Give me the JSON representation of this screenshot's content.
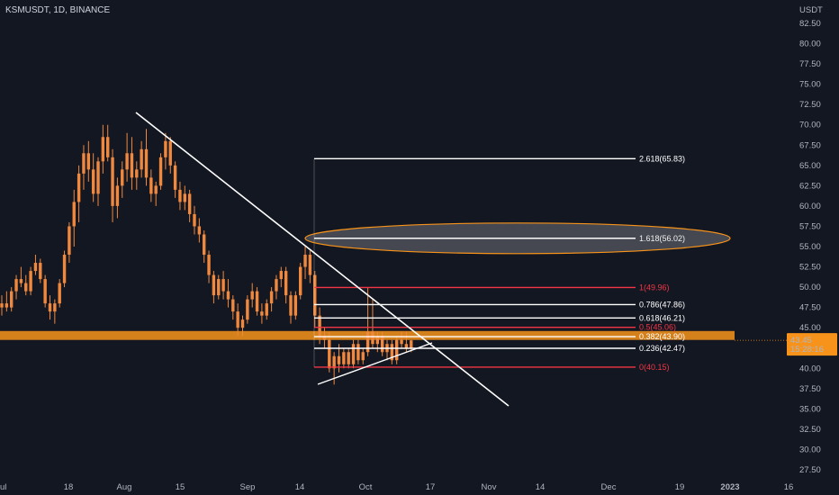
{
  "chart_title": "KSMUSDT, 1D, BINANCE",
  "price_unit": "USDT",
  "current_price_label": "43.45",
  "countdown_label": "15:28:16",
  "colors": {
    "background": "#131722",
    "candle": "#f0883e",
    "accent": "#f7931a",
    "fib_red": "#f23645",
    "fib_white": "#ffffff",
    "axis_text": "#b2b5be"
  },
  "chart_data": {
    "type": "candlestick",
    "title": "KSMUSDT, 1D, BINANCE",
    "ylim": [
      27.5,
      82.5
    ],
    "y_ticks": [
      "82.50",
      "80.00",
      "77.50",
      "75.00",
      "72.50",
      "70.00",
      "67.50",
      "65.00",
      "62.50",
      "60.00",
      "57.50",
      "55.00",
      "52.50",
      "50.00",
      "47.50",
      "45.00",
      "42.50",
      "40.00",
      "37.50",
      "35.00",
      "32.50",
      "30.00",
      "27.50"
    ],
    "x_ticks": [
      "ul",
      "18",
      "Aug",
      "15",
      "Sep",
      "14",
      "Oct",
      "17",
      "Nov",
      "14",
      "Dec",
      "19",
      "2023",
      "16"
    ],
    "candles": [
      {
        "o": 47.5,
        "h": 49.0,
        "l": 46.5,
        "c": 48.0
      },
      {
        "o": 48.0,
        "h": 49.5,
        "l": 47.0,
        "c": 47.5
      },
      {
        "o": 47.5,
        "h": 50.0,
        "l": 47.0,
        "c": 49.5
      },
      {
        "o": 49.5,
        "h": 51.5,
        "l": 48.5,
        "c": 51.0
      },
      {
        "o": 51.0,
        "h": 52.5,
        "l": 50.0,
        "c": 50.5
      },
      {
        "o": 50.5,
        "h": 51.5,
        "l": 49.0,
        "c": 49.5
      },
      {
        "o": 49.5,
        "h": 52.5,
        "l": 49.0,
        "c": 52.0
      },
      {
        "o": 52.0,
        "h": 54.0,
        "l": 51.5,
        "c": 53.0
      },
      {
        "o": 53.0,
        "h": 53.5,
        "l": 50.5,
        "c": 51.0
      },
      {
        "o": 51.0,
        "h": 51.5,
        "l": 47.5,
        "c": 48.0
      },
      {
        "o": 48.0,
        "h": 49.0,
        "l": 46.0,
        "c": 47.0
      },
      {
        "o": 47.0,
        "h": 48.5,
        "l": 45.5,
        "c": 48.0
      },
      {
        "o": 48.0,
        "h": 51.0,
        "l": 47.5,
        "c": 50.5
      },
      {
        "o": 50.5,
        "h": 54.5,
        "l": 50.0,
        "c": 54.0
      },
      {
        "o": 54.0,
        "h": 58.0,
        "l": 53.0,
        "c": 57.5
      },
      {
        "o": 57.5,
        "h": 62.0,
        "l": 55.0,
        "c": 60.5
      },
      {
        "o": 60.5,
        "h": 65.0,
        "l": 58.0,
        "c": 64.0
      },
      {
        "o": 64.0,
        "h": 67.5,
        "l": 62.0,
        "c": 66.5
      },
      {
        "o": 66.5,
        "h": 68.0,
        "l": 63.0,
        "c": 64.5
      },
      {
        "o": 64.5,
        "h": 66.5,
        "l": 60.5,
        "c": 61.5
      },
      {
        "o": 61.5,
        "h": 66.0,
        "l": 60.0,
        "c": 65.5
      },
      {
        "o": 65.5,
        "h": 70.0,
        "l": 64.0,
        "c": 68.5
      },
      {
        "o": 68.5,
        "h": 70.0,
        "l": 65.5,
        "c": 66.0
      },
      {
        "o": 66.0,
        "h": 67.0,
        "l": 58.0,
        "c": 60.0
      },
      {
        "o": 60.0,
        "h": 63.5,
        "l": 58.5,
        "c": 62.5
      },
      {
        "o": 62.5,
        "h": 65.5,
        "l": 61.0,
        "c": 64.5
      },
      {
        "o": 64.5,
        "h": 69.0,
        "l": 63.0,
        "c": 66.5
      },
      {
        "o": 66.5,
        "h": 68.5,
        "l": 62.0,
        "c": 63.5
      },
      {
        "o": 63.5,
        "h": 65.5,
        "l": 62.0,
        "c": 64.5
      },
      {
        "o": 64.5,
        "h": 68.0,
        "l": 63.5,
        "c": 67.0
      },
      {
        "o": 67.0,
        "h": 69.5,
        "l": 62.5,
        "c": 63.5
      },
      {
        "o": 63.5,
        "h": 64.5,
        "l": 60.5,
        "c": 61.5
      },
      {
        "o": 61.5,
        "h": 63.0,
        "l": 60.0,
        "c": 62.5
      },
      {
        "o": 62.5,
        "h": 66.5,
        "l": 62.0,
        "c": 66.0
      },
      {
        "o": 66.0,
        "h": 69.0,
        "l": 64.5,
        "c": 68.0
      },
      {
        "o": 68.0,
        "h": 68.5,
        "l": 64.0,
        "c": 65.0
      },
      {
        "o": 65.0,
        "h": 65.5,
        "l": 61.0,
        "c": 62.0
      },
      {
        "o": 62.0,
        "h": 63.0,
        "l": 59.5,
        "c": 60.5
      },
      {
        "o": 60.5,
        "h": 62.5,
        "l": 59.5,
        "c": 61.5
      },
      {
        "o": 61.5,
        "h": 62.0,
        "l": 58.0,
        "c": 59.0
      },
      {
        "o": 59.0,
        "h": 60.0,
        "l": 56.5,
        "c": 57.5
      },
      {
        "o": 57.5,
        "h": 58.5,
        "l": 55.5,
        "c": 56.5
      },
      {
        "o": 56.5,
        "h": 57.0,
        "l": 53.0,
        "c": 54.0
      },
      {
        "o": 54.0,
        "h": 54.5,
        "l": 50.5,
        "c": 51.5
      },
      {
        "o": 51.5,
        "h": 52.0,
        "l": 48.0,
        "c": 49.0
      },
      {
        "o": 49.0,
        "h": 51.5,
        "l": 48.5,
        "c": 51.0
      },
      {
        "o": 51.0,
        "h": 52.0,
        "l": 48.5,
        "c": 49.5
      },
      {
        "o": 49.5,
        "h": 51.0,
        "l": 47.5,
        "c": 48.5
      },
      {
        "o": 48.5,
        "h": 49.0,
        "l": 46.0,
        "c": 47.0
      },
      {
        "o": 47.0,
        "h": 48.0,
        "l": 44.0,
        "c": 45.0
      },
      {
        "o": 45.0,
        "h": 46.5,
        "l": 44.0,
        "c": 46.0
      },
      {
        "o": 46.0,
        "h": 49.0,
        "l": 45.5,
        "c": 48.5
      },
      {
        "o": 48.5,
        "h": 50.5,
        "l": 47.5,
        "c": 49.5
      },
      {
        "o": 49.5,
        "h": 50.0,
        "l": 46.5,
        "c": 47.0
      },
      {
        "o": 47.0,
        "h": 48.0,
        "l": 45.5,
        "c": 46.5
      },
      {
        "o": 46.5,
        "h": 48.5,
        "l": 46.0,
        "c": 48.0
      },
      {
        "o": 48.0,
        "h": 50.0,
        "l": 47.0,
        "c": 49.5
      },
      {
        "o": 49.5,
        "h": 51.5,
        "l": 48.5,
        "c": 51.0
      },
      {
        "o": 51.0,
        "h": 52.5,
        "l": 50.0,
        "c": 52.0
      },
      {
        "o": 52.0,
        "h": 52.5,
        "l": 48.0,
        "c": 49.0
      },
      {
        "o": 49.0,
        "h": 49.5,
        "l": 45.5,
        "c": 46.5
      },
      {
        "o": 46.5,
        "h": 49.5,
        "l": 46.0,
        "c": 49.0
      },
      {
        "o": 49.0,
        "h": 53.0,
        "l": 48.5,
        "c": 52.5
      },
      {
        "o": 52.5,
        "h": 55.0,
        "l": 51.0,
        "c": 54.0
      },
      {
        "o": 54.0,
        "h": 54.5,
        "l": 50.5,
        "c": 51.5
      },
      {
        "o": 51.5,
        "h": 52.0,
        "l": 45.0,
        "c": 46.5
      },
      {
        "o": 46.5,
        "h": 47.5,
        "l": 43.0,
        "c": 44.0
      },
      {
        "o": 44.0,
        "h": 45.0,
        "l": 42.5,
        "c": 43.5
      },
      {
        "o": 43.5,
        "h": 44.5,
        "l": 39.5,
        "c": 40.0
      },
      {
        "o": 40.0,
        "h": 42.0,
        "l": 38.0,
        "c": 41.5
      },
      {
        "o": 41.5,
        "h": 43.0,
        "l": 39.5,
        "c": 40.5
      },
      {
        "o": 40.5,
        "h": 42.5,
        "l": 40.0,
        "c": 42.0
      },
      {
        "o": 42.0,
        "h": 42.5,
        "l": 40.0,
        "c": 40.5
      },
      {
        "o": 40.5,
        "h": 43.5,
        "l": 40.0,
        "c": 43.0
      },
      {
        "o": 43.0,
        "h": 43.5,
        "l": 40.5,
        "c": 41.0
      },
      {
        "o": 41.0,
        "h": 42.5,
        "l": 40.5,
        "c": 42.0
      },
      {
        "o": 42.0,
        "h": 50.0,
        "l": 41.5,
        "c": 44.5
      },
      {
        "o": 44.5,
        "h": 48.5,
        "l": 42.5,
        "c": 43.0
      },
      {
        "o": 43.0,
        "h": 44.5,
        "l": 42.0,
        "c": 44.0
      },
      {
        "o": 44.0,
        "h": 44.5,
        "l": 41.5,
        "c": 42.0
      },
      {
        "o": 42.0,
        "h": 43.5,
        "l": 41.0,
        "c": 43.0
      },
      {
        "o": 43.0,
        "h": 43.5,
        "l": 40.5,
        "c": 41.0
      },
      {
        "o": 41.0,
        "h": 44.0,
        "l": 40.5,
        "c": 43.5
      },
      {
        "o": 43.5,
        "h": 44.5,
        "l": 42.5,
        "c": 43.0
      },
      {
        "o": 43.0,
        "h": 44.5,
        "l": 42.0,
        "c": 42.5
      },
      {
        "o": 42.5,
        "h": 43.5,
        "l": 42.0,
        "c": 43.45
      }
    ],
    "fib_levels": [
      {
        "label": "2.618(65.83)",
        "value": 65.83,
        "color": "#ffffff"
      },
      {
        "label": "1.618(56.02)",
        "value": 56.02,
        "color": "#ffffff"
      },
      {
        "label": "1(49.96)",
        "value": 49.96,
        "color": "#f23645"
      },
      {
        "label": "0.786(47.86)",
        "value": 47.86,
        "color": "#ffffff"
      },
      {
        "label": "0.618(46.21)",
        "value": 46.21,
        "color": "#ffffff"
      },
      {
        "label": "0.5(45.06)",
        "value": 45.06,
        "color": "#f23645"
      },
      {
        "label": "0.382(43.90)",
        "value": 43.9,
        "color": "#ffffff"
      },
      {
        "label": "0.236(42.47)",
        "value": 42.47,
        "color": "#ffffff"
      },
      {
        "label": "0(40.15)",
        "value": 40.15,
        "color": "#f23645"
      }
    ],
    "support_zone": {
      "from": 43.5,
      "to": 44.6
    },
    "last_price": 43.45
  }
}
